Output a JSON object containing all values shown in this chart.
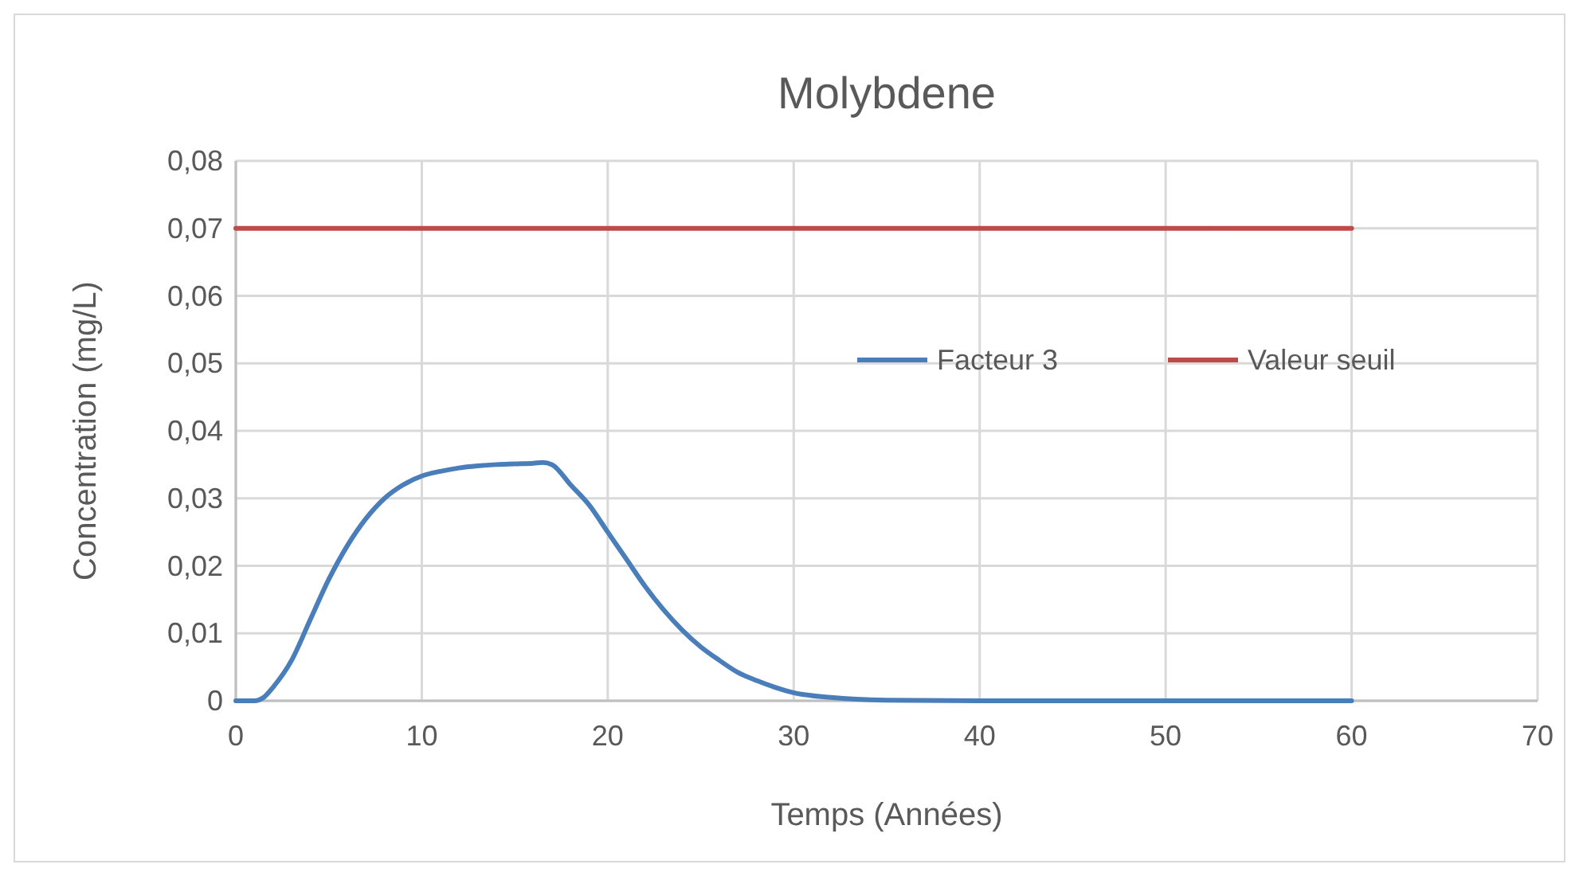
{
  "chart_data": {
    "type": "line",
    "title": "Molybdene",
    "xlabel": "Temps (Années)",
    "ylabel": "Concentration (mg/L)",
    "xlim": [
      0,
      70
    ],
    "xticks": [
      0,
      10,
      20,
      30,
      40,
      50,
      60,
      70
    ],
    "ylim": [
      0,
      0.08
    ],
    "yticks": [
      {
        "value": 0,
        "label": "0"
      },
      {
        "value": 0.01,
        "label": "0,01"
      },
      {
        "value": 0.02,
        "label": "0,02"
      },
      {
        "value": 0.03,
        "label": "0,03"
      },
      {
        "value": 0.04,
        "label": "0,04"
      },
      {
        "value": 0.05,
        "label": "0,05"
      },
      {
        "value": 0.06,
        "label": "0,06"
      },
      {
        "value": 0.07,
        "label": "0,07"
      },
      {
        "value": 0.08,
        "label": "0,08"
      }
    ],
    "grid": true,
    "legend": "right",
    "marker": "none",
    "line_style": "solid",
    "series": [
      {
        "name": "Facteur 3",
        "color": "#4a7ebb",
        "x": [
          0,
          1,
          1.5,
          2,
          3,
          4,
          5,
          6,
          7,
          8,
          9,
          10,
          11,
          12,
          13,
          14,
          15,
          16,
          16.5,
          17,
          18,
          19,
          20,
          21,
          22,
          23,
          24,
          25,
          26,
          27,
          28,
          29,
          30,
          32,
          35,
          40,
          60
        ],
        "values": [
          0,
          0,
          0.0005,
          0.002,
          0.006,
          0.012,
          0.018,
          0.023,
          0.027,
          0.03,
          0.032,
          0.0333,
          0.034,
          0.0345,
          0.0348,
          0.035,
          0.0351,
          0.0352,
          0.0353,
          0.035,
          0.032,
          0.029,
          0.025,
          0.021,
          0.017,
          0.0135,
          0.0105,
          0.008,
          0.006,
          0.0042,
          0.003,
          0.002,
          0.0012,
          0.0005,
          0.0001,
          0,
          0
        ]
      },
      {
        "name": "Valeur seuil",
        "color": "#be4b48",
        "x": [
          0,
          60
        ],
        "values": [
          0.07,
          0.07
        ]
      }
    ]
  }
}
